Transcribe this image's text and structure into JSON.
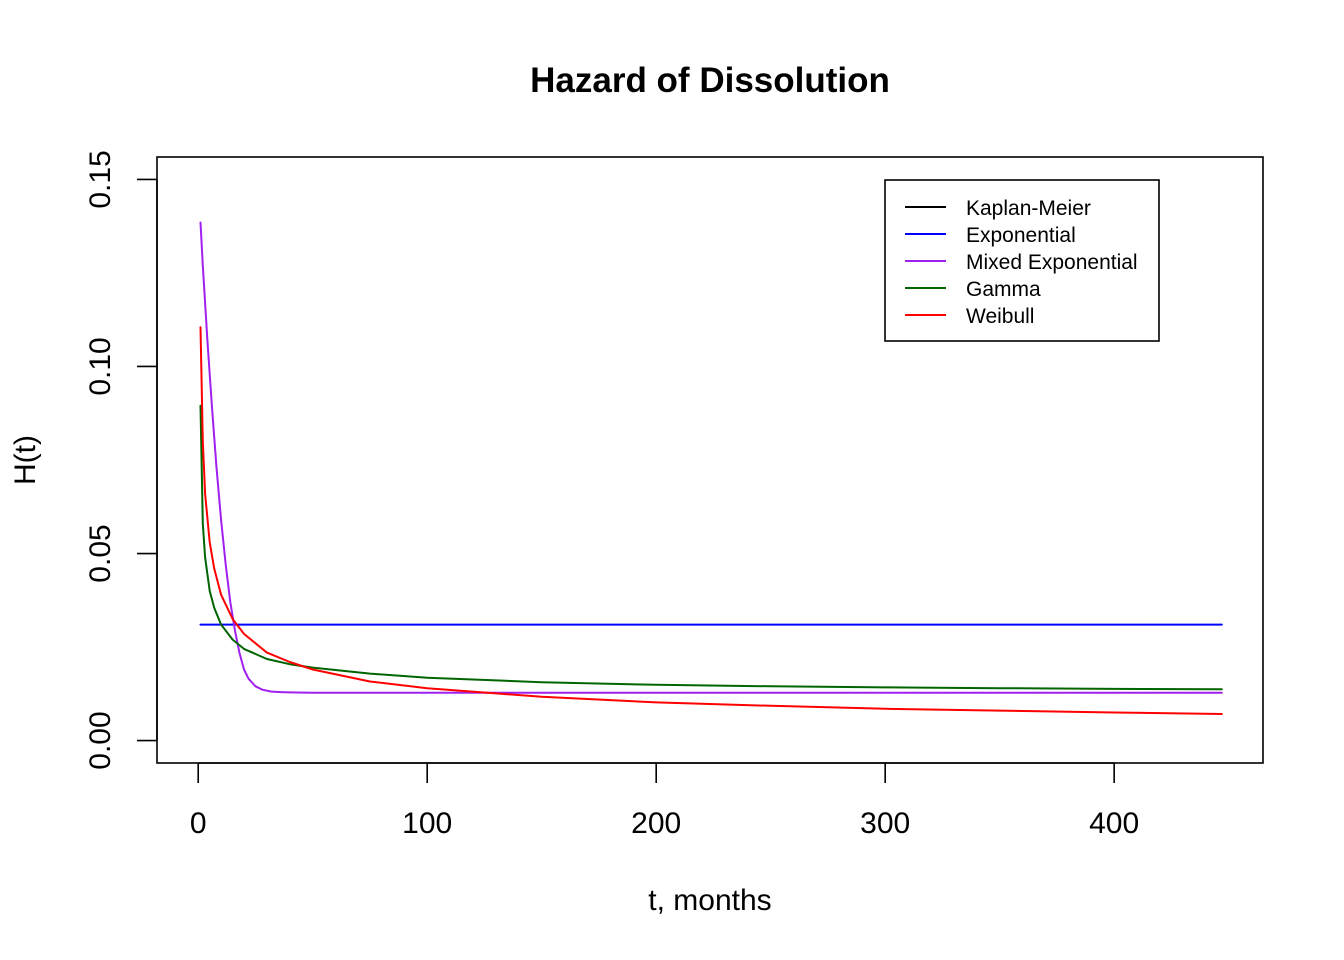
{
  "chart_data": {
    "type": "line",
    "title": "Hazard of Dissolution",
    "xlabel": "t, months",
    "ylabel": "H(t)",
    "xlim": [
      -18,
      465
    ],
    "ylim": [
      -0.006,
      0.156
    ],
    "x_ticks": [
      0,
      100,
      200,
      300,
      400
    ],
    "y_ticks": [
      0.0,
      0.05,
      0.1,
      0.15
    ],
    "x_tick_labels": [
      "0",
      "100",
      "200",
      "300",
      "400"
    ],
    "y_tick_labels": [
      "0.00",
      "0.05",
      "0.10",
      "0.15"
    ],
    "grid": false,
    "legend_position": "top-right",
    "series": [
      {
        "name": "Kaplan-Meier",
        "color": "#000000",
        "x": [],
        "y": []
      },
      {
        "name": "Exponential",
        "color": "#0000ff",
        "x": [
          1,
          447
        ],
        "y": [
          0.031,
          0.031
        ]
      },
      {
        "name": "Mixed Exponential",
        "color": "#a020f0",
        "x": [
          1,
          2,
          4,
          6,
          8,
          10,
          12,
          14,
          16,
          18,
          20,
          22,
          25,
          28,
          32,
          36,
          40,
          50,
          100,
          200,
          300,
          447
        ],
        "y": [
          0.1385,
          0.127,
          0.107,
          0.089,
          0.073,
          0.059,
          0.047,
          0.037,
          0.0295,
          0.0235,
          0.019,
          0.0165,
          0.0145,
          0.0136,
          0.0131,
          0.01295,
          0.01288,
          0.0128,
          0.0128,
          0.0128,
          0.0128,
          0.0128
        ]
      },
      {
        "name": "Gamma",
        "color": "#006400",
        "x": [
          1,
          2,
          3,
          5,
          7,
          10,
          15,
          20,
          30,
          40,
          50,
          75,
          100,
          150,
          200,
          250,
          300,
          350,
          400,
          447
        ],
        "y": [
          0.0895,
          0.058,
          0.049,
          0.04,
          0.0355,
          0.031,
          0.027,
          0.0245,
          0.0218,
          0.0204,
          0.0195,
          0.0179,
          0.0168,
          0.0156,
          0.0149,
          0.0145,
          0.0142,
          0.014,
          0.0138,
          0.0137
        ]
      },
      {
        "name": "Weibull",
        "color": "#ff0000",
        "x": [
          1,
          2,
          3,
          5,
          7,
          10,
          15,
          20,
          30,
          40,
          50,
          75,
          100,
          150,
          200,
          250,
          300,
          350,
          400,
          447
        ],
        "y": [
          0.1105,
          0.08,
          0.066,
          0.053,
          0.046,
          0.039,
          0.0325,
          0.0285,
          0.0235,
          0.021,
          0.019,
          0.0158,
          0.014,
          0.0117,
          0.0102,
          0.0093,
          0.0085,
          0.008,
          0.0075,
          0.0071
        ]
      }
    ]
  }
}
